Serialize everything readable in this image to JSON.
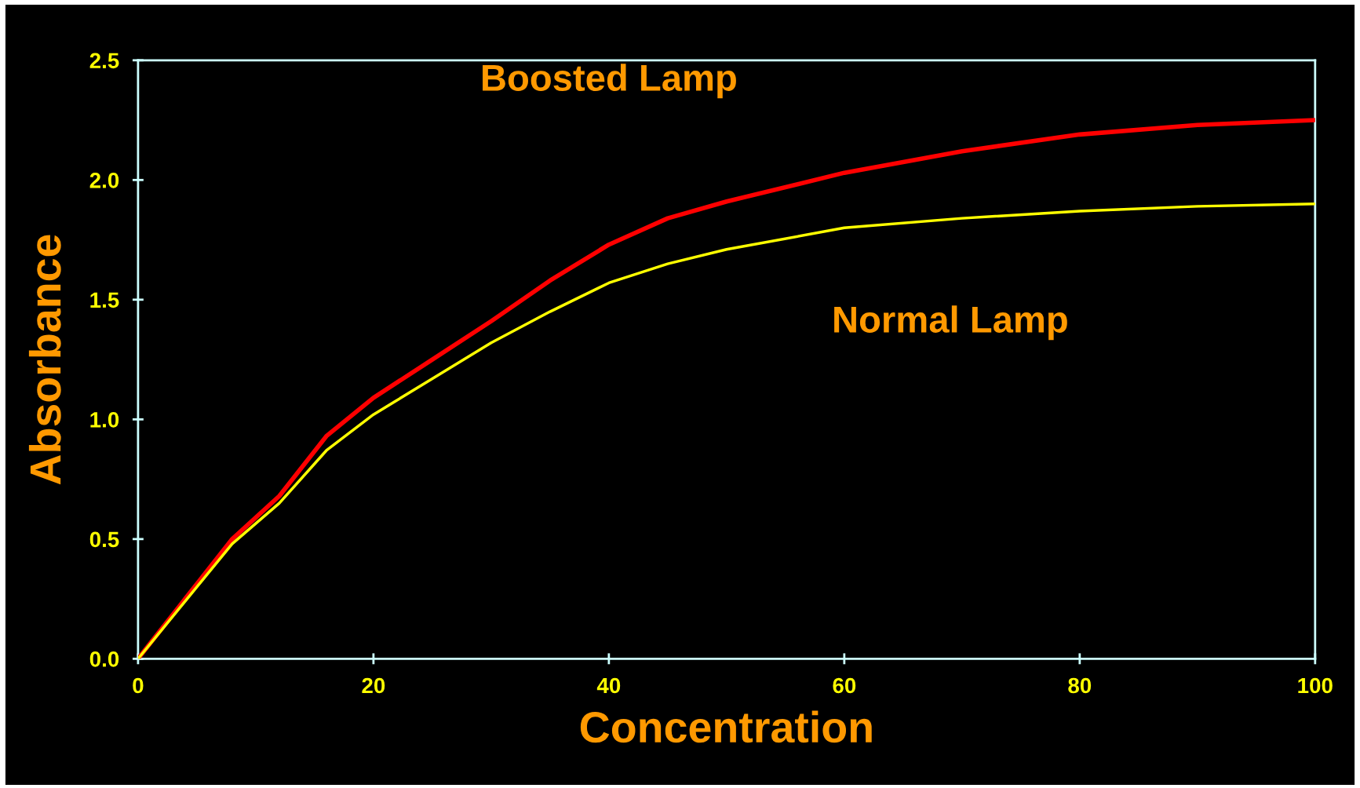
{
  "chart_data": {
    "type": "line",
    "xlabel": "Concentration",
    "ylabel": "Absorbance",
    "xlim": [
      0,
      100
    ],
    "xticks": [
      0,
      20,
      40,
      60,
      80,
      100
    ],
    "ylim": [
      0.0,
      2.5
    ],
    "yticks": [
      {
        "value": 0,
        "label": "0.0"
      },
      {
        "value": 0.5,
        "label": "0.5"
      },
      {
        "value": 1.0,
        "label": "1.0"
      },
      {
        "value": 1.5,
        "label": "1.5"
      },
      {
        "value": 2.0,
        "label": "2.0"
      },
      {
        "value": 2.5,
        "label": "2.5"
      }
    ],
    "grid": false,
    "legend": false,
    "marker": "none",
    "line_style": "solid",
    "x": [
      0,
      4,
      8,
      12,
      16,
      20,
      25,
      30,
      35,
      40,
      45,
      50,
      60,
      70,
      80,
      90,
      100
    ],
    "series": [
      {
        "name": "Boosted Lamp",
        "color": "#ff0000",
        "values": [
          0,
          0.25,
          0.5,
          0.68,
          0.93,
          1.09,
          1.25,
          1.41,
          1.58,
          1.73,
          1.84,
          1.91,
          2.03,
          2.12,
          2.19,
          2.23,
          2.25
        ]
      },
      {
        "name": "Normal Lamp",
        "color": "#ffff00",
        "values": [
          0,
          0.24,
          0.48,
          0.65,
          0.87,
          1.02,
          1.17,
          1.32,
          1.45,
          1.57,
          1.65,
          1.71,
          1.8,
          1.84,
          1.87,
          1.89,
          1.9
        ]
      }
    ]
  }
}
